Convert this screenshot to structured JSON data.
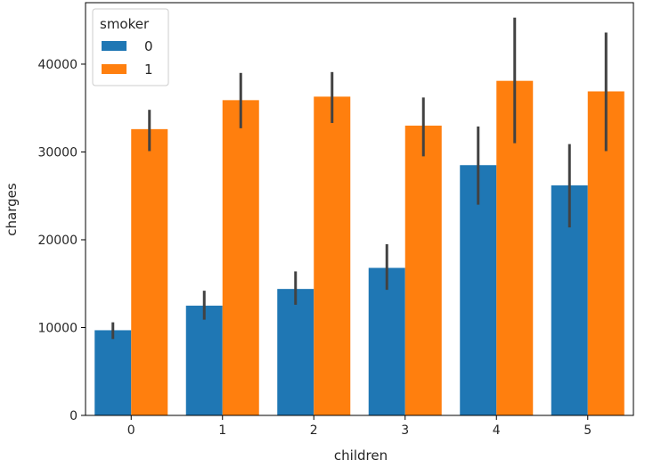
{
  "chart_data": {
    "type": "bar",
    "categories": [
      "0",
      "1",
      "2",
      "3",
      "4",
      "5"
    ],
    "xlabel": "children",
    "ylabel": "charges",
    "ylim": [
      0,
      47000
    ],
    "yticks": [
      0,
      10000,
      20000,
      30000,
      40000
    ],
    "ytick_labels": [
      "0",
      "10000",
      "20000",
      "30000",
      "40000"
    ],
    "grid": false,
    "legend": {
      "title": "smoker",
      "placement": "top-left",
      "entries": [
        "0",
        "1"
      ]
    },
    "series": [
      {
        "name": "0",
        "color": "#1f77b4",
        "values": [
          9700,
          12500,
          14400,
          16800,
          28500,
          26200
        ],
        "err_low": [
          8700,
          10900,
          12600,
          14300,
          24000,
          21400
        ],
        "err_high": [
          10600,
          14200,
          16400,
          19500,
          32900,
          30900
        ]
      },
      {
        "name": "1",
        "color": "#ff7f0e",
        "values": [
          32600,
          35900,
          36300,
          33000,
          38100,
          36900
        ],
        "err_low": [
          30100,
          32700,
          33300,
          29500,
          31000,
          30100
        ],
        "err_high": [
          34800,
          39000,
          39100,
          36200,
          45300,
          43600
        ]
      }
    ],
    "errorbar_color": "#424242"
  }
}
